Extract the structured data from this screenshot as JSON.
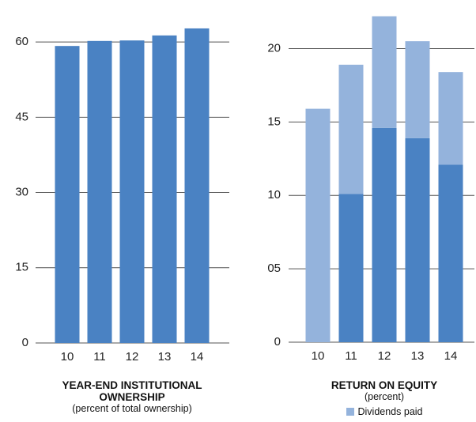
{
  "chart_data": [
    {
      "type": "bar",
      "title": "YEAR-END INSTITUTIONAL OWNERSHIP",
      "subtitle": "(percent of total ownership)",
      "categories": [
        "10",
        "11",
        "12",
        "13",
        "14"
      ],
      "values": [
        59.2,
        60.2,
        60.3,
        61.3,
        62.7
      ],
      "color": "#4a82c3",
      "ylim": [
        0,
        66
      ],
      "yticks": [
        0,
        15,
        30,
        45,
        60
      ],
      "grid": true
    },
    {
      "type": "stacked_bar",
      "title": "RETURN ON EQUITY",
      "subtitle": "(percent)",
      "categories": [
        "10",
        "11",
        "12",
        "13",
        "14"
      ],
      "series": [
        {
          "color": "#4a82c3",
          "values": [
            0,
            10.1,
            14.6,
            13.9,
            12.1
          ]
        },
        {
          "name": "Dividends paid",
          "color": "#94b3dc",
          "values": [
            15.9,
            8.8,
            7.6,
            6.6,
            6.3
          ]
        }
      ],
      "ylim": [
        0,
        22.5
      ],
      "yticks": [
        0,
        {
          "value": 5,
          "label": "05"
        },
        10,
        15,
        20
      ],
      "grid": true
    }
  ]
}
